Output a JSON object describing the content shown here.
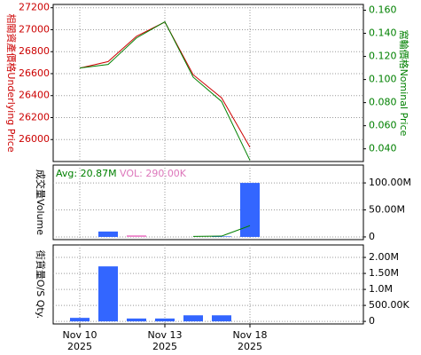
{
  "chart_data": [
    {
      "type": "line",
      "ylabel": "相關資產價格Underlying Price",
      "y2label": "窩輪價格Nominal Price",
      "ylim": [
        25800,
        27230
      ],
      "yticks": [
        26000,
        26200,
        26400,
        26600,
        26800,
        27000,
        27200
      ],
      "y2lim": [
        0.029,
        0.165
      ],
      "y2ticks": [
        {
          "value": 0.04,
          "label": "0.040"
        },
        {
          "value": 0.06,
          "label": "0.060"
        },
        {
          "value": 0.08,
          "label": "0.080"
        },
        {
          "value": 0.1,
          "label": "0.100"
        },
        {
          "value": 0.12,
          "label": "0.120"
        },
        {
          "value": 0.14,
          "label": "0.140"
        },
        {
          "value": 0.16,
          "label": "0.160"
        }
      ],
      "grid": true,
      "series": [
        {
          "color": "#cc0000",
          "values": [
            26650,
            26710,
            26940,
            27070,
            26590,
            26380,
            25930,
            null,
            null,
            null
          ]
        },
        {
          "color": "#008000",
          "axis": "y2",
          "values": [
            0.11,
            0.113,
            0.136,
            0.15,
            0.102,
            0.081,
            0.03,
            null,
            null,
            null
          ]
        }
      ]
    },
    {
      "type": "bar",
      "ylabel": "成交量Volume",
      "annotations": [
        {
          "text": "Avg: 20.87M",
          "color": "#008000"
        },
        {
          "text": "VOL: 290.00K",
          "color": "#dd77bb"
        }
      ],
      "ylim": [
        -5000000,
        133000000
      ],
      "y2ticks": [
        0,
        {
          "value": 50000000,
          "label": "50.00M"
        },
        {
          "value": 100000000,
          "label": "100.00M"
        }
      ],
      "grid": true,
      "series": [
        {
          "type": "bar",
          "colors": [
            "#3366ff",
            "#3366ff",
            "#ee88cc",
            "#3366ff",
            "#3366ff",
            "#3366ff",
            "#3366ff",
            "#3366ff",
            "#3366ff",
            "#3366ff"
          ],
          "values": [
            null,
            10000000,
            3000000,
            null,
            null,
            1000000,
            100000000,
            null,
            null,
            null
          ]
        },
        {
          "type": "line",
          "color": "#008000",
          "values": [
            null,
            null,
            null,
            null,
            1000000,
            1500000,
            20870000,
            null,
            null,
            null
          ]
        }
      ]
    },
    {
      "type": "bar",
      "ylabel": "街貨量O/S Qty.",
      "ylim": [
        -80000,
        2390000
      ],
      "y2ticks": [
        0,
        {
          "value": 500000,
          "label": "500.00K"
        },
        {
          "value": 1000000,
          "label": "1.0M"
        },
        {
          "value": 1500000,
          "label": "1.50M"
        },
        {
          "value": 2000000,
          "label": "2.00M"
        }
      ],
      "grid": true,
      "color": "#3366ff",
      "categories": [
        "Nov 10\n2025",
        null,
        null,
        "Nov 13\n2025",
        null,
        null,
        "Nov 18\n2025",
        null,
        null,
        null
      ],
      "values": [
        110000,
        1720000,
        90000,
        90000,
        190000,
        190000,
        null,
        null,
        null,
        null
      ]
    }
  ]
}
